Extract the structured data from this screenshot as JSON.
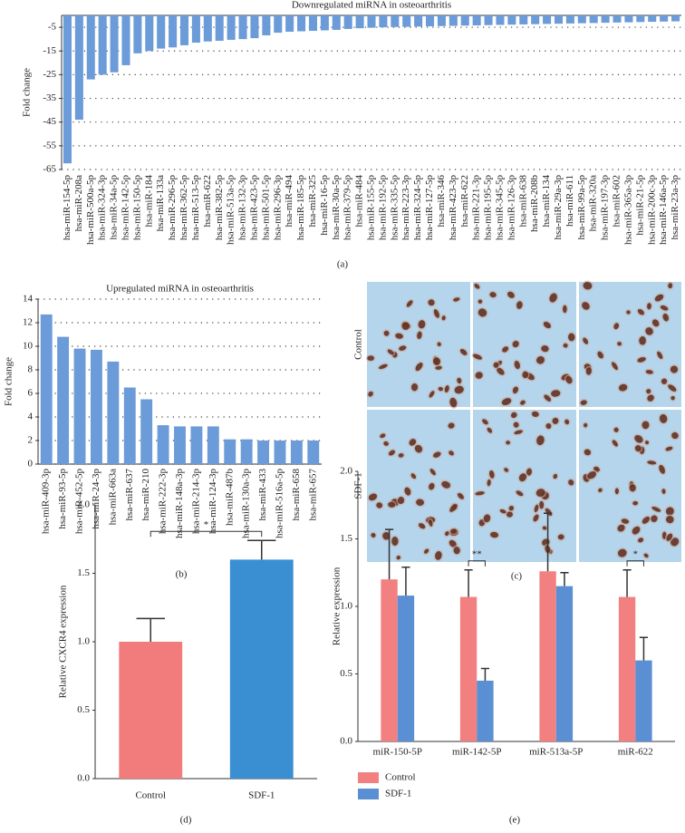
{
  "chart_data": [
    {
      "type": "bar",
      "title": "Downregulated miRNA in osteoarthritis",
      "panel_label": "(a)",
      "y_label": "Fold change",
      "categories": [
        "hsa-miR-154-5p",
        "hsa-miR-208a",
        "hsa-miR-500a-5p",
        "hsa-miR-324-3p",
        "hsa-miR-34a-5p",
        "hsa-miR-142-5p",
        "hsa-miR-150-5p",
        "hsa-miR-184",
        "hsa-miR-133a",
        "hsa-miR-296-5p",
        "hsa-miR-362-5p",
        "hsa-miR-513-5p",
        "hsa-miR-622",
        "hsa-miR-382-5p",
        "hsa-miR-513a-5p",
        "hsa-miR-132-3p",
        "hsa-miR-423-5p",
        "hsa-miR-501-5p",
        "hsa-miR-296-3p",
        "hsa-miR-494",
        "hsa-miR-185-5p",
        "hsa-miR-325",
        "hsa-miR-16-5p",
        "hsa-miR-30a-5p",
        "hsa-miR-379-5p",
        "hsa-miR-484",
        "hsa-miR-155-5p",
        "hsa-miR-192-5p",
        "hsa-miR-335-5p",
        "hsa-miR-223-3p",
        "hsa-miR-324-5p",
        "hsa-miR-127-5p",
        "hsa-miR-346",
        "hsa-miR-423-3p",
        "hsa-miR-622",
        "hsa-miR-221-3p",
        "hsa-miR-195-5p",
        "hsa-miR-345-5p",
        "hsa-miR-126-3p",
        "hsa-miR-638",
        "hsa-miR-208b",
        "hsa-miR-134",
        "hsa-miR-29a-3p",
        "hsa-miR-611",
        "hsa-miR-99a-5p",
        "hsa-miR-320a",
        "hsa-miR-197-3p",
        "hsa-miR-602",
        "hsa-miR-365a-3p",
        "hsa-miR-21-5p",
        "hsa-miR-200c-3p",
        "hsa-miR-146a-5p",
        "hsa-miR-23a-3p"
      ],
      "values": [
        -62.4,
        -44,
        -27,
        -25,
        -24,
        -21,
        -16,
        -15,
        -14,
        -13.5,
        -12.6,
        -11.5,
        -11,
        -10.7,
        -10.3,
        -10,
        -9.6,
        -8.4,
        -7.3,
        -6.9,
        -6.7,
        -6.5,
        -6.3,
        -6.1,
        -5.7,
        -5.4,
        -5.2,
        -5,
        -4.9,
        -4.8,
        -4.7,
        -4.6,
        -4.5,
        -4.4,
        -4.3,
        -4.2,
        -4.1,
        -4,
        -3.9,
        -3.8,
        -3.7,
        -3.6,
        -3.5,
        -3.4,
        -3.3,
        -3.2,
        -3.1,
        -3,
        -2.9,
        -2.8,
        -2.7,
        -2.6,
        -2.5
      ],
      "color": "#6b9bd8",
      "ylim": [
        -65,
        0
      ],
      "yticks": [
        -5,
        -15,
        -25,
        -35,
        -45,
        -55,
        -65
      ],
      "grid": true
    },
    {
      "type": "bar",
      "title": "Upregulated miRNA in osteoarthritis",
      "panel_label": "(b)",
      "y_label": "Fold change",
      "categories": [
        "hsa-miR-409-3p",
        "hsa-miR-93-5p",
        "hsa-miR-452-5p",
        "hsa-miR-24-3p",
        "hsa-miR-663a",
        "hsa-miR-637",
        "hsa-miR-210",
        "hsa-miR-222-3p",
        "hsa-miR-148a-3p",
        "hsa-miR-214-3p",
        "hsa-miR-124-3p",
        "hsa-miR-487b",
        "hsa-miR-130a-3p",
        "hsa-miR-433",
        "hsa-miR-516a-5p",
        "hsa-miR-658",
        "hsa-miR-657"
      ],
      "values": [
        12.7,
        10.8,
        9.8,
        9.7,
        8.7,
        6.5,
        5.5,
        3.3,
        3.2,
        3.2,
        3.2,
        2.1,
        2.1,
        2,
        2,
        2,
        2
      ],
      "color": "#6b9bd8",
      "ylim": [
        0,
        14
      ],
      "yticks": [
        0,
        2,
        4,
        6,
        8,
        10,
        12,
        14
      ],
      "grid": true
    },
    {
      "type": "bar",
      "panel_label": "(d)",
      "y_label": "Relative CXCR4 expression",
      "categories": [
        "Control",
        "SDF-1"
      ],
      "values": [
        1.0,
        1.6
      ],
      "errors": [
        0.17,
        0.14
      ],
      "colors": [
        "#f27c7c",
        "#3a8ed2"
      ],
      "ylim": [
        0,
        2
      ],
      "yticks": [
        {
          "value": 0,
          "label": "0.0"
        },
        {
          "value": 0.5,
          "label": "0.5"
        },
        {
          "value": 1,
          "label": "1.0"
        },
        {
          "value": 1.5,
          "label": "1.5"
        },
        {
          "value": 2,
          "label": "2.0"
        }
      ],
      "grid": false,
      "significance": "*"
    },
    {
      "type": "grouped_bar",
      "panel_label": "(e)",
      "y_label": "Relative expression",
      "categories": [
        "miR-150-5P",
        "miR-142-5P",
        "miR-513a-5P",
        "miR-622"
      ],
      "series": [
        {
          "name": "Control",
          "color": "#f28080",
          "values": [
            1.2,
            1.07,
            1.26,
            1.07
          ],
          "errors": [
            0.37,
            0.2,
            0.43,
            0.2
          ]
        },
        {
          "name": "SDF-1",
          "color": "#5b8fd4",
          "values": [
            1.08,
            0.45,
            1.15,
            0.6
          ],
          "errors": [
            0.21,
            0.09,
            0.1,
            0.17
          ]
        }
      ],
      "ylim": [
        0,
        2
      ],
      "yticks": [
        {
          "value": 0,
          "label": "0.0"
        },
        {
          "value": 0.5,
          "label": "0.5"
        },
        {
          "value": 1,
          "label": "1.0"
        },
        {
          "value": 1.5,
          "label": "1.5"
        },
        {
          "value": 2,
          "label": "2.0"
        }
      ],
      "grid": false,
      "significance": [
        null,
        "**",
        null,
        "*"
      ],
      "legend": "bottom-left"
    }
  ],
  "image_panel": {
    "panel_label": "(c)",
    "rows": [
      "Control",
      "SDF-1"
    ]
  }
}
